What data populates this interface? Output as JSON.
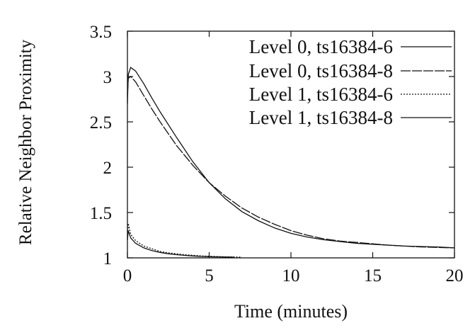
{
  "chart_data": {
    "type": "line",
    "title": "",
    "xlabel": "Time (minutes)",
    "ylabel": "Relative Neighbor Proximity",
    "xlim": [
      0,
      20
    ],
    "ylim": [
      1,
      3.5
    ],
    "xticks": [
      0,
      5,
      10,
      15,
      20
    ],
    "xtick_labels": [
      "0",
      "5",
      "10",
      "15",
      "20"
    ],
    "yticks": [
      1,
      1.5,
      2,
      2.5,
      3,
      3.5
    ],
    "ytick_labels": [
      "1",
      "1.5",
      "2",
      "2.5",
      "3",
      "3.5"
    ],
    "grid": false,
    "legend_position": "top-right",
    "series": [
      {
        "name": "Level 0, ts16384-6",
        "style": "solid",
        "x": [
          0,
          0.05,
          0.2,
          0.5,
          1,
          1.5,
          2,
          3,
          4,
          5,
          6,
          7,
          8,
          9,
          10,
          11,
          12,
          13,
          14,
          15,
          16,
          17,
          18,
          19,
          20
        ],
        "y": [
          2.7,
          3.02,
          3.1,
          3.06,
          2.92,
          2.76,
          2.61,
          2.33,
          2.06,
          1.83,
          1.65,
          1.51,
          1.41,
          1.33,
          1.27,
          1.23,
          1.2,
          1.18,
          1.16,
          1.15,
          1.14,
          1.13,
          1.125,
          1.12,
          1.11
        ]
      },
      {
        "name": "Level 0, ts16384-8",
        "style": "long-dash",
        "x": [
          0,
          0.05,
          0.2,
          0.5,
          1,
          1.5,
          2,
          3,
          4,
          5,
          6,
          7,
          8,
          9,
          10,
          11,
          12,
          13,
          14,
          15,
          16,
          17,
          18,
          19,
          20
        ],
        "y": [
          2.8,
          2.98,
          3.0,
          2.94,
          2.79,
          2.64,
          2.5,
          2.24,
          2.02,
          1.83,
          1.68,
          1.55,
          1.45,
          1.37,
          1.3,
          1.25,
          1.21,
          1.185,
          1.17,
          1.155,
          1.14,
          1.13,
          1.12,
          1.115,
          1.11
        ]
      },
      {
        "name": "Level 1, ts16384-6",
        "style": "dotted",
        "x": [
          0,
          0.05,
          0.2,
          0.5,
          1,
          1.5,
          2,
          2.5,
          3,
          3.5,
          4,
          4.5,
          5,
          5.5,
          6,
          6.5,
          7
        ],
        "y": [
          1.2,
          1.38,
          1.26,
          1.19,
          1.13,
          1.1,
          1.07,
          1.055,
          1.045,
          1.035,
          1.028,
          1.022,
          1.018,
          1.015,
          1.012,
          1.01,
          1.008
        ]
      },
      {
        "name": "Level 1, ts16384-8",
        "style": "solid",
        "x": [
          0,
          0.05,
          0.2,
          0.5,
          1,
          1.5,
          2,
          2.5,
          3,
          3.5,
          4,
          4.5,
          5,
          5.5,
          6,
          6.5
        ],
        "y": [
          1.2,
          1.3,
          1.22,
          1.16,
          1.11,
          1.08,
          1.06,
          1.045,
          1.035,
          1.027,
          1.021,
          1.016,
          1.013,
          1.011,
          1.009,
          1.008
        ]
      }
    ]
  }
}
